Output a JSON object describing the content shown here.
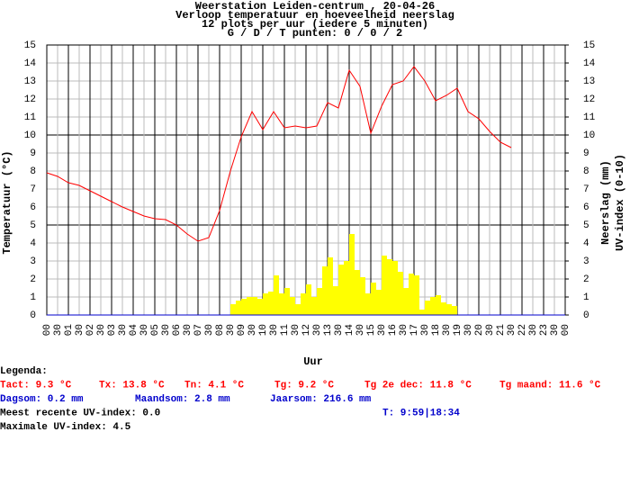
{
  "chart_data": {
    "type": "line",
    "title": "Weerstation Leiden-centrum , 20-04-26",
    "subtitle": [
      "Verloop temperatuur en hoeveelheid neerslag",
      "12 plots per uur (iedere 5 minuten)",
      "G / D / T punten: 0 / 0 / 2"
    ],
    "xlabel": "Uur",
    "ylabel": "Temperatuur (°C)",
    "y2label": [
      "Neerslag (mm)",
      "UV-index (0-10)"
    ],
    "xlim": [
      0,
      24
    ],
    "ylim": [
      0,
      15
    ],
    "y2lim": [
      0,
      15
    ],
    "grid": true,
    "xticks": [
      {
        "value": 0,
        "label": "00"
      },
      {
        "value": 0.5,
        "label": "30"
      },
      {
        "value": 1,
        "label": "01"
      },
      {
        "value": 1.5,
        "label": "30"
      },
      {
        "value": 2,
        "label": "02"
      },
      {
        "value": 2.5,
        "label": "30"
      },
      {
        "value": 3,
        "label": "03"
      },
      {
        "value": 3.5,
        "label": "30"
      },
      {
        "value": 4,
        "label": "04"
      },
      {
        "value": 4.5,
        "label": "30"
      },
      {
        "value": 5,
        "label": "05"
      },
      {
        "value": 5.5,
        "label": "30"
      },
      {
        "value": 6,
        "label": "06"
      },
      {
        "value": 6.5,
        "label": "30"
      },
      {
        "value": 7,
        "label": "07"
      },
      {
        "value": 7.5,
        "label": "30"
      },
      {
        "value": 8,
        "label": "08"
      },
      {
        "value": 8.5,
        "label": "30"
      },
      {
        "value": 9,
        "label": "09"
      },
      {
        "value": 9.5,
        "label": "30"
      },
      {
        "value": 10,
        "label": "10"
      },
      {
        "value": 10.5,
        "label": "30"
      },
      {
        "value": 11,
        "label": "11"
      },
      {
        "value": 11.5,
        "label": "30"
      },
      {
        "value": 12,
        "label": "12"
      },
      {
        "value": 12.5,
        "label": "30"
      },
      {
        "value": 13,
        "label": "13"
      },
      {
        "value": 13.5,
        "label": "30"
      },
      {
        "value": 14,
        "label": "14"
      },
      {
        "value": 14.5,
        "label": "30"
      },
      {
        "value": 15,
        "label": "15"
      },
      {
        "value": 15.5,
        "label": "30"
      },
      {
        "value": 16,
        "label": "16"
      },
      {
        "value": 16.5,
        "label": "30"
      },
      {
        "value": 17,
        "label": "17"
      },
      {
        "value": 17.5,
        "label": "30"
      },
      {
        "value": 18,
        "label": "18"
      },
      {
        "value": 18.5,
        "label": "30"
      },
      {
        "value": 19,
        "label": "19"
      },
      {
        "value": 19.5,
        "label": "30"
      },
      {
        "value": 20,
        "label": "20"
      },
      {
        "value": 20.5,
        "label": "30"
      },
      {
        "value": 21,
        "label": "21"
      },
      {
        "value": 21.5,
        "label": "30"
      },
      {
        "value": 22,
        "label": "22"
      },
      {
        "value": 22.5,
        "label": "30"
      },
      {
        "value": 23,
        "label": "23"
      },
      {
        "value": 23.5,
        "label": "30"
      },
      {
        "value": 24,
        "label": "00"
      }
    ],
    "yticks": [
      0,
      1,
      2,
      3,
      4,
      5,
      6,
      7,
      8,
      9,
      10,
      11,
      12,
      13,
      14,
      15
    ],
    "y2ticks": [
      0,
      1,
      2,
      3,
      4,
      5,
      6,
      7,
      8,
      9,
      10,
      11,
      12,
      13,
      14,
      15
    ],
    "series": [
      {
        "type": "line",
        "color": "#ff0000",
        "x": [
          0,
          0.5,
          1,
          1.5,
          2,
          2.5,
          3,
          3.5,
          4,
          4.5,
          5,
          5.5,
          6,
          6.5,
          7,
          7.5,
          8,
          8.5,
          9,
          9.5,
          10,
          10.5,
          11,
          11.5,
          12,
          12.5,
          13,
          13.5,
          14,
          14.5,
          15,
          15.5,
          16,
          16.5,
          17,
          17.5,
          18,
          18.5,
          19,
          19.5,
          20,
          20.5,
          21,
          21.5
        ],
        "values": [
          7.9,
          7.7,
          7.35,
          7.2,
          6.9,
          6.6,
          6.3,
          6.0,
          5.75,
          5.5,
          5.35,
          5.3,
          5.0,
          4.5,
          4.1,
          4.3,
          5.8,
          8.0,
          9.9,
          11.3,
          10.3,
          11.3,
          10.4,
          10.5,
          10.4,
          10.5,
          11.8,
          11.5,
          13.6,
          12.7,
          10.1,
          11.6,
          12.8,
          13.0,
          13.8,
          13.0,
          11.9,
          12.2,
          12.6,
          11.3,
          10.9,
          10.2,
          9.6,
          9.3
        ]
      },
      {
        "type": "bar",
        "axis": "y2",
        "color": "#ffff00",
        "x": [
          8.5,
          8.75,
          9,
          9.25,
          9.5,
          9.75,
          10,
          10.25,
          10.5,
          10.75,
          11,
          11.25,
          11.5,
          11.75,
          12,
          12.25,
          12.5,
          12.75,
          13,
          13.25,
          13.5,
          13.75,
          14,
          14.25,
          14.5,
          14.75,
          15,
          15.25,
          15.5,
          15.75,
          16,
          16.25,
          16.5,
          16.75,
          17,
          17.25,
          17.5,
          17.75,
          18,
          18.25,
          18.5,
          18.75
        ],
        "values": [
          0.6,
          0.8,
          0.9,
          1.0,
          1.0,
          0.9,
          1.2,
          1.3,
          2.2,
          1.2,
          1.5,
          1.0,
          0.6,
          1.2,
          1.7,
          1.0,
          1.5,
          2.7,
          3.2,
          1.6,
          2.8,
          3.0,
          4.5,
          2.5,
          2.1,
          1.2,
          1.8,
          1.4,
          3.3,
          3.1,
          3.0,
          2.4,
          1.5,
          2.3,
          2.2,
          0.3,
          0.8,
          1.0,
          1.1,
          0.7,
          0.6,
          0.5
        ]
      }
    ]
  },
  "legend_rows": [
    {
      "color": "#000000",
      "items": [
        "Legenda:"
      ]
    },
    {
      "color": "#ff0000",
      "items": [
        "Tact: 9.3 °C",
        "Tx: 13.8 °C",
        "Tn: 4.1 °C",
        "Tg: 9.2 °C",
        "Tg 2e dec: 11.8 °C",
        "Tg maand: 11.6 °C"
      ]
    },
    {
      "color": "#0000cc",
      "items": [
        "Dagsom: 0.2 mm",
        "Maandsom: 2.8 mm",
        "Jaarsom: 216.6 mm"
      ]
    },
    {
      "color": "#000000",
      "items": [
        "Meest recente UV-index: 0.0"
      ]
    },
    {
      "color": "#000000",
      "items": [
        "Maximale UV-index: 4.5"
      ]
    }
  ],
  "uv_time": {
    "color": "#0000cc",
    "text": "T: 9:59|18:34"
  }
}
